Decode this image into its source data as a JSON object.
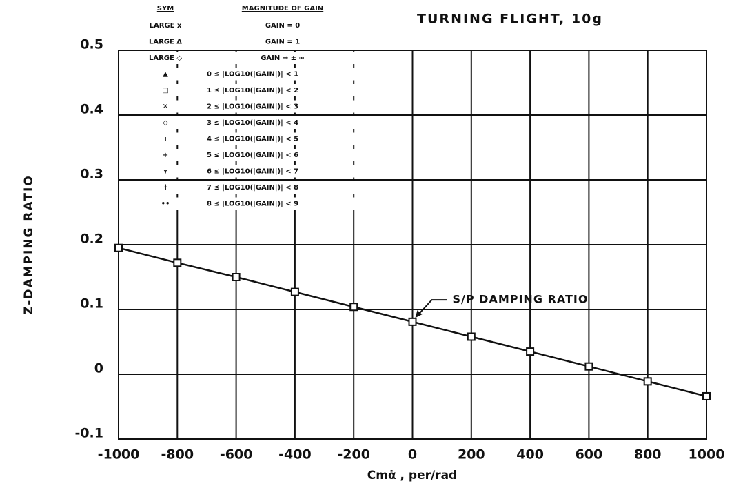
{
  "chart_data": {
    "type": "line",
    "title": "TURNING FLIGHT, 10g",
    "x_label": "Cmα̇ , per/rad",
    "y_label": "Z-DAMPING RATIO",
    "x": [
      -1000,
      -800,
      -600,
      -400,
      -200,
      0,
      200,
      400,
      600,
      800,
      1000
    ],
    "series": [
      {
        "name": "S/P DAMPING RATIO",
        "color": "#111111",
        "values": [
          0.195,
          0.172,
          0.15,
          0.127,
          0.104,
          0.081,
          0.058,
          0.035,
          0.012,
          -0.011,
          -0.034
        ]
      }
    ],
    "annotation": {
      "text": "S/P DAMPING RATIO",
      "x": 0,
      "y": 0.085
    },
    "xlim": [
      -1000,
      1000
    ],
    "ylim": [
      -0.1,
      0.5
    ],
    "xticks": [
      -1000,
      -800,
      -600,
      -400,
      -200,
      0,
      200,
      400,
      600,
      800,
      1000
    ],
    "yticks": [
      -0.1,
      0,
      0.1,
      0.2,
      0.3,
      0.4,
      0.5
    ],
    "grid": true,
    "legend": {
      "headers": [
        "SYM",
        "MAGNITUDE OF GAIN"
      ],
      "rows": [
        [
          "LARGE x",
          "GAIN = 0"
        ],
        [
          "LARGE Δ",
          "GAIN = 1"
        ],
        [
          "LARGE ◇",
          "GAIN → ± ∞"
        ],
        [
          "▲",
          "0 ≤ |LOG10(|GAIN|)| < 1"
        ],
        [
          "□",
          "1 ≤ |LOG10(|GAIN|)| < 2"
        ],
        [
          "✕",
          "2 ≤ |LOG10(|GAIN|)| < 3"
        ],
        [
          "◇",
          "3 ≤ |LOG10(|GAIN|)| < 4"
        ],
        [
          "ı",
          "4 ≤ |LOG10(|GAIN|)| < 5"
        ],
        [
          "+",
          "5 ≤ |LOG10(|GAIN|)| < 6"
        ],
        [
          "ʏ",
          "6 ≤ |LOG10(|GAIN|)| < 7"
        ],
        [
          "ɫ",
          "7 ≤ |LOG10(|GAIN|)| < 8"
        ],
        [
          "••",
          "8 ≤ |LOG10(|GAIN|)| < 9"
        ]
      ]
    }
  }
}
